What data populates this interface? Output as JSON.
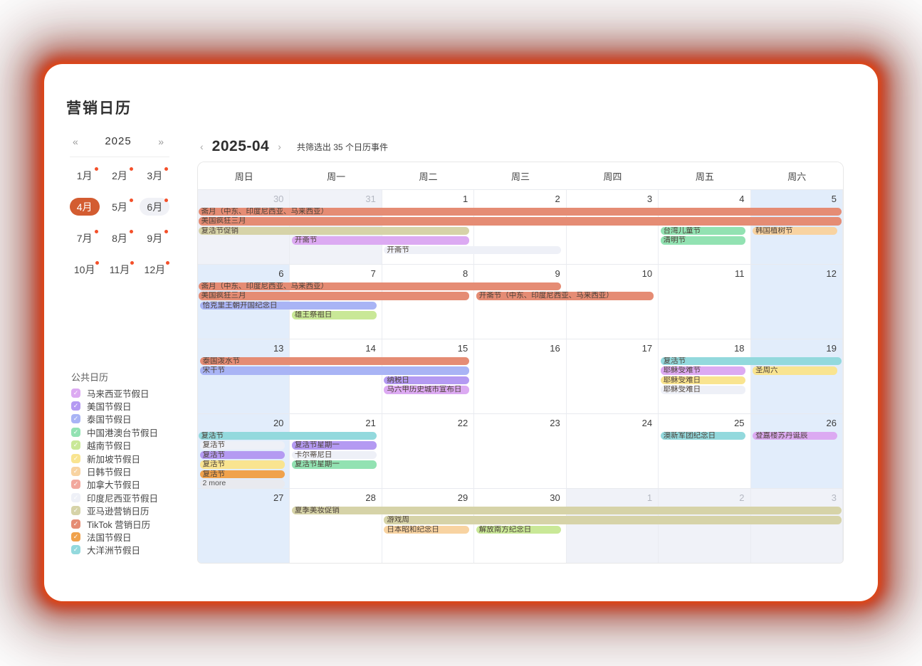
{
  "page": {
    "title": "营销日历"
  },
  "colors": {
    "accent_selected_month": "#d35c31",
    "month_dot": "#f4502a",
    "weekend_bg": "#e2edfb",
    "other_month_bg": "#f0f2f8",
    "glow_border": "#cd300c",
    "more_chip": "#e9eaef"
  },
  "year_nav": {
    "prev_icon": "«",
    "year": "2025",
    "next_icon": "»"
  },
  "months": [
    {
      "label": "1月",
      "dot": true,
      "selected": false,
      "highlight": false
    },
    {
      "label": "2月",
      "dot": true,
      "selected": false,
      "highlight": false
    },
    {
      "label": "3月",
      "dot": true,
      "selected": false,
      "highlight": false
    },
    {
      "label": "4月",
      "dot": false,
      "selected": true,
      "highlight": false
    },
    {
      "label": "5月",
      "dot": true,
      "selected": false,
      "highlight": false
    },
    {
      "label": "6月",
      "dot": true,
      "selected": false,
      "highlight": true
    },
    {
      "label": "7月",
      "dot": true,
      "selected": false,
      "highlight": false
    },
    {
      "label": "8月",
      "dot": true,
      "selected": false,
      "highlight": false
    },
    {
      "label": "9月",
      "dot": true,
      "selected": false,
      "highlight": false
    },
    {
      "label": "10月",
      "dot": true,
      "selected": false,
      "highlight": false
    },
    {
      "label": "11月",
      "dot": true,
      "selected": false,
      "highlight": false
    },
    {
      "label": "12月",
      "dot": true,
      "selected": false,
      "highlight": false
    }
  ],
  "sidebar": {
    "section_label": "公共日历",
    "calendars": [
      {
        "id": "my",
        "label": "马来西亚节假日",
        "color": "#dcaaf2"
      },
      {
        "id": "us",
        "label": "美国节假日",
        "color": "#b49af2"
      },
      {
        "id": "th",
        "label": "泰国节假日",
        "color": "#a9b4f5"
      },
      {
        "id": "cn",
        "label": "中国港澳台节假日",
        "color": "#92e2b2"
      },
      {
        "id": "vn",
        "label": "越南节假日",
        "color": "#c9e897"
      },
      {
        "id": "sg",
        "label": "新加坡节假日",
        "color": "#f9e490"
      },
      {
        "id": "jk",
        "label": "日韩节假日",
        "color": "#f8d3a1"
      },
      {
        "id": "ca",
        "label": "加拿大节假日",
        "color": "#f2a89e"
      },
      {
        "id": "id",
        "label": "印度尼西亚节假日",
        "color": "#eef0f7"
      },
      {
        "id": "amz",
        "label": "亚马逊营销日历",
        "color": "#d6d3a8"
      },
      {
        "id": "tiktok",
        "label": "TikTok 营销日历",
        "color": "#e58c74"
      },
      {
        "id": "fr",
        "label": "法国节假日",
        "color": "#f0a24c"
      },
      {
        "id": "oc",
        "label": "大洋洲节假日",
        "color": "#93d9dd"
      }
    ]
  },
  "calendar": {
    "nav_prev_icon": "‹",
    "nav_next_icon": "›",
    "month_title": "2025-04",
    "filter_text": "共筛选出 35 个日历事件",
    "weekdays": [
      "周日",
      "周一",
      "周二",
      "周三",
      "周四",
      "周五",
      "周六"
    ],
    "weeks": [
      {
        "days": [
          {
            "n": "30",
            "out": true
          },
          {
            "n": "31",
            "out": true
          },
          {
            "n": "1"
          },
          {
            "n": "2"
          },
          {
            "n": "3"
          },
          {
            "n": "4"
          },
          {
            "n": "5"
          }
        ],
        "events": [
          {
            "label": "斋月（中东、印度尼西亚、马来西亚）",
            "cal": "tiktok",
            "slot": 1,
            "col": 0,
            "span": 7,
            "contL": true,
            "contR": true
          },
          {
            "label": "美国疯狂三月",
            "cal": "tiktok",
            "slot": 2,
            "col": 0,
            "span": 7,
            "contL": true,
            "contR": true
          },
          {
            "label": "复活节促销",
            "cal": "amz",
            "slot": 3,
            "col": 0,
            "span": 3,
            "contL": true
          },
          {
            "label": "台湾儿童节",
            "cal": "cn",
            "slot": 3,
            "col": 5,
            "span": 1
          },
          {
            "label": "韩国植树节",
            "cal": "jk",
            "slot": 3,
            "col": 6,
            "span": 1
          },
          {
            "label": "开斋节",
            "cal": "my",
            "slot": 4,
            "col": 1,
            "span": 2
          },
          {
            "label": "清明节",
            "cal": "cn",
            "slot": 4,
            "col": 5,
            "span": 1
          },
          {
            "label": "开斋节",
            "cal": "id",
            "slot": 5,
            "col": 2,
            "span": 2
          }
        ]
      },
      {
        "days": [
          {
            "n": "6"
          },
          {
            "n": "7"
          },
          {
            "n": "8"
          },
          {
            "n": "9"
          },
          {
            "n": "10"
          },
          {
            "n": "11"
          },
          {
            "n": "12"
          }
        ],
        "events": [
          {
            "label": "斋月（中东、印度尼西亚、马来西亚）",
            "cal": "tiktok",
            "slot": 1,
            "col": 0,
            "span": 4,
            "contL": true
          },
          {
            "label": "美国疯狂三月",
            "cal": "tiktok",
            "slot": 2,
            "col": 0,
            "span": 3,
            "contL": true
          },
          {
            "label": "开斋节（中东、印度尼西亚、马来西亚）",
            "cal": "tiktok",
            "slot": 2,
            "col": 3,
            "span": 2
          },
          {
            "label": "恰克里王朝开国纪念日",
            "cal": "th",
            "slot": 3,
            "col": 0,
            "span": 2
          },
          {
            "label": "雄王祭祖日",
            "cal": "vn",
            "slot": 4,
            "col": 1,
            "span": 1
          }
        ]
      },
      {
        "days": [
          {
            "n": "13"
          },
          {
            "n": "14"
          },
          {
            "n": "15"
          },
          {
            "n": "16"
          },
          {
            "n": "17"
          },
          {
            "n": "18"
          },
          {
            "n": "19"
          }
        ],
        "events": [
          {
            "label": "泰国泼水节",
            "cal": "tiktok",
            "slot": 1,
            "col": 0,
            "span": 3
          },
          {
            "label": "复活节",
            "cal": "oc",
            "slot": 1,
            "col": 5,
            "span": 2,
            "contR": true
          },
          {
            "label": "宋干节",
            "cal": "th",
            "slot": 2,
            "col": 0,
            "span": 3
          },
          {
            "label": "耶稣受难节",
            "cal": "my",
            "slot": 2,
            "col": 5,
            "span": 1
          },
          {
            "label": "圣周六",
            "cal": "sg",
            "slot": 2,
            "col": 6,
            "span": 1
          },
          {
            "label": "纳税日",
            "cal": "us",
            "slot": 3,
            "col": 2,
            "span": 1
          },
          {
            "label": "耶稣受难日",
            "cal": "sg",
            "slot": 3,
            "col": 5,
            "span": 1
          },
          {
            "label": "马六甲历史城市宣布日",
            "cal": "my",
            "slot": 4,
            "col": 2,
            "span": 1
          },
          {
            "label": "耶稣受难日",
            "cal": "id",
            "slot": 4,
            "col": 5,
            "span": 1
          }
        ]
      },
      {
        "days": [
          {
            "n": "20"
          },
          {
            "n": "21"
          },
          {
            "n": "22"
          },
          {
            "n": "23"
          },
          {
            "n": "24"
          },
          {
            "n": "25"
          },
          {
            "n": "26"
          }
        ],
        "events": [
          {
            "label": "复活节",
            "cal": "oc",
            "slot": 1,
            "col": 0,
            "span": 2,
            "contL": true
          },
          {
            "label": "澳新军团纪念日",
            "cal": "oc",
            "slot": 1,
            "col": 5,
            "span": 1
          },
          {
            "label": "登嘉楼苏丹诞辰",
            "cal": "my",
            "slot": 1,
            "col": 6,
            "span": 1
          },
          {
            "label": "复活节",
            "cal": "id",
            "slot": 2,
            "col": 0,
            "span": 1
          },
          {
            "label": "复活节星期一",
            "cal": "us",
            "slot": 2,
            "col": 1,
            "span": 1
          },
          {
            "label": "复活节",
            "cal": "us",
            "slot": 3,
            "col": 0,
            "span": 1
          },
          {
            "label": "卡尔蒂尼日",
            "cal": "id",
            "slot": 3,
            "col": 1,
            "span": 1
          },
          {
            "label": "复活节",
            "cal": "sg",
            "slot": 4,
            "col": 0,
            "span": 1
          },
          {
            "label": "复活节星期一",
            "cal": "cn",
            "slot": 4,
            "col": 1,
            "span": 1
          },
          {
            "label": "复活节",
            "cal": "fr",
            "slot": 5,
            "col": 0,
            "span": 1
          },
          {
            "label": "2 more",
            "cal": "more",
            "slot": 6,
            "col": 0,
            "span": 1
          }
        ]
      },
      {
        "days": [
          {
            "n": "27"
          },
          {
            "n": "28"
          },
          {
            "n": "29"
          },
          {
            "n": "30"
          },
          {
            "n": "1",
            "out": true
          },
          {
            "n": "2",
            "out": true
          },
          {
            "n": "3",
            "out": true
          }
        ],
        "events": [
          {
            "label": "夏季美妆促销",
            "cal": "amz",
            "slot": 1,
            "col": 1,
            "span": 6,
            "contR": true
          },
          {
            "label": "游戏周",
            "cal": "amz",
            "slot": 2,
            "col": 2,
            "span": 5,
            "contR": true
          },
          {
            "label": "日本昭和纪念日",
            "cal": "jk",
            "slot": 3,
            "col": 2,
            "span": 1
          },
          {
            "label": "解放南方纪念日",
            "cal": "vn",
            "slot": 3,
            "col": 3,
            "span": 1
          }
        ]
      }
    ]
  }
}
